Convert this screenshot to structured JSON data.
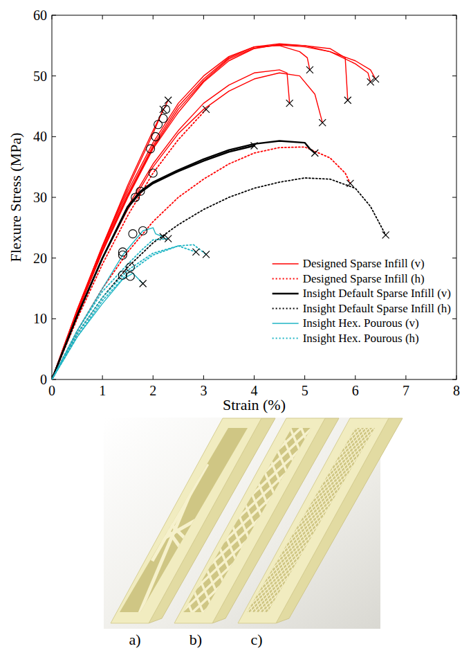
{
  "chart_data": {
    "type": "line",
    "x_label": "Strain (%)",
    "y_label": "Flexure Stress (MPa)",
    "xlim": [
      0,
      8
    ],
    "ylim": [
      0,
      60
    ],
    "xticks": [
      0,
      1,
      2,
      3,
      4,
      5,
      6,
      7,
      8
    ],
    "yticks": [
      0,
      10,
      20,
      30,
      40,
      50,
      60
    ],
    "grid": false,
    "legend": "lower right",
    "marker": "x",
    "series": [
      {
        "name": "Designed Sparse Infill (v)",
        "color": "#ff0000",
        "line_style": "solid",
        "specimens": [
          {
            "x": [
              0,
              0.5,
              1,
              1.5,
              2,
              2.5,
              3,
              3.5,
              4,
              4.5,
              5,
              5.5,
              6,
              6.3,
              6.4
            ],
            "values": [
              0,
              11,
              21,
              30,
              38,
              44,
              49,
              52.5,
              54.5,
              55.2,
              55,
              54,
              52.5,
              51,
              49.5
            ]
          },
          {
            "x": [
              0,
              0.5,
              1,
              1.5,
              2,
              2.5,
              3,
              3.5,
              4,
              4.5,
              5,
              5.5,
              5.8,
              5.85
            ],
            "values": [
              0,
              11,
              21.5,
              30.5,
              38.5,
              45,
              49.5,
              53,
              54.8,
              55.3,
              55,
              54.5,
              53,
              46
            ]
          },
          {
            "x": [
              0,
              0.5,
              1,
              1.5,
              2,
              2.5,
              3,
              3.5,
              4,
              4.5,
              4.9,
              5.05,
              5.1
            ],
            "values": [
              0,
              11.2,
              21.8,
              31,
              39,
              45.5,
              50,
              53.2,
              54.8,
              55,
              54,
              53,
              51
            ]
          },
          {
            "x": [
              0,
              0.5,
              1,
              1.5,
              2,
              2.5,
              3,
              3.5,
              4,
              4.5,
              4.65,
              4.7
            ],
            "values": [
              0,
              10.5,
              20,
              28.5,
              35.5,
              41,
              45.5,
              48.5,
              50.5,
              51,
              50.5,
              45.5
            ]
          },
          {
            "x": [
              0,
              0.5,
              1,
              1.5,
              2,
              2.5,
              3,
              3.5,
              4,
              4.5,
              4.9,
              5.2,
              5.35
            ],
            "values": [
              0,
              10.5,
              20,
              28,
              35,
              40.5,
              44.5,
              47.5,
              49.5,
              50.5,
              50,
              47,
              42.3
            ]
          },
          {
            "x": [
              0,
              0.5,
              1,
              1.5,
              2,
              2.5,
              3,
              3.5,
              4,
              4.5,
              5,
              5.5,
              6,
              6.25,
              6.3
            ],
            "values": [
              0,
              11,
              21.2,
              30.2,
              38.2,
              44.5,
              49.2,
              52.8,
              54.6,
              55.1,
              54.8,
              54,
              52,
              50.5,
              49
            ]
          },
          {
            "x": [
              0,
              0.5,
              1,
              1.5,
              2,
              2.3
            ],
            "values": [
              0,
              11.5,
              22,
              32,
              41,
              46
            ]
          },
          {
            "x": [
              0,
              0.5,
              1,
              1.5,
              2,
              2.2
            ],
            "values": [
              0,
              11.5,
              22,
              31.5,
              40.5,
              44.5
            ]
          }
        ]
      },
      {
        "name": "Designed Sparse Infill (h)",
        "color": "#ff0000",
        "line_style": "dotted",
        "specimens": [
          {
            "x": [
              0,
              0.5,
              1,
              1.5,
              2,
              2.5,
              3,
              3.5,
              4,
              4.5,
              5,
              5.5,
              5.8,
              5.9
            ],
            "values": [
              0,
              8,
              15,
              21,
              26,
              30,
              33,
              35.5,
              37.3,
              38.2,
              38.3,
              36.5,
              34,
              32.3
            ]
          },
          {
            "x": [
              0,
              0.5,
              1,
              1.5,
              2,
              2.5,
              3.05
            ],
            "values": [
              0,
              10,
              19,
              27,
              34,
              39.5,
              44.5
            ]
          }
        ]
      },
      {
        "name": "Insight Default Sparse Infill (v)",
        "color": "#000000",
        "line_style": "solid",
        "specimens": [
          {
            "x": [
              0,
              0.5,
              1,
              1.5,
              1.75,
              2,
              2.5,
              3,
              3.5,
              4,
              4.5,
              5,
              5.1,
              5.2
            ],
            "values": [
              0,
              10.5,
              20,
              28.5,
              31,
              32.5,
              34.5,
              36.3,
              37.8,
              38.8,
              39.3,
              39,
              38,
              37.3
            ]
          },
          {
            "x": [
              0,
              0.5,
              1,
              1.5,
              1.75,
              2,
              2.5,
              3,
              3.5,
              4
            ],
            "values": [
              0,
              10.5,
              20,
              28.3,
              30.8,
              32.3,
              34.3,
              36,
              37.5,
              38.5
            ]
          }
        ]
      },
      {
        "name": "Insight Default Sparse Infill (h)",
        "color": "#000000",
        "line_style": "dotted",
        "specimens": [
          {
            "x": [
              0,
              0.5,
              1,
              1.5,
              2,
              2.5,
              3,
              3.5,
              4,
              4.5,
              5,
              5.5,
              6,
              6.3,
              6.6
            ],
            "values": [
              0,
              7.5,
              13.5,
              18.5,
              22.5,
              25.5,
              28,
              30,
              31.5,
              32.5,
              33.2,
              33,
              31.5,
              28.5,
              23.8
            ]
          }
        ]
      },
      {
        "name": "Insight Hex. Pourous (v)",
        "color": "#1fb5c4",
        "line_style": "solid",
        "specimens": [
          {
            "x": [
              0,
              0.5,
              1,
              1.4,
              1.8,
              2,
              2.05,
              2.2
            ],
            "values": [
              0,
              8,
              15,
              20.5,
              24.5,
              25,
              24,
              23.5
            ]
          },
          {
            "x": [
              0,
              0.5,
              1,
              1.4,
              1.6,
              1.8
            ],
            "values": [
              0,
              7,
              12.5,
              16.5,
              17.5,
              15.8
            ]
          }
        ]
      },
      {
        "name": "Insight Hex. Pourous (h)",
        "color": "#1fb5c4",
        "line_style": "dotted",
        "specimens": [
          {
            "x": [
              0,
              0.5,
              1,
              1.5,
              2,
              2.5,
              2.8,
              3.05
            ],
            "values": [
              0,
              7,
              13,
              17.5,
              20.5,
              22,
              22.2,
              20.6
            ]
          },
          {
            "x": [
              0,
              0.5,
              1,
              1.5,
              2,
              2.5,
              2.85
            ],
            "values": [
              0,
              7.5,
              13.5,
              18,
              20.8,
              22,
              21
            ]
          },
          {
            "x": [
              0,
              0.5,
              1,
              1.5,
              1.8,
              2,
              2.3
            ],
            "values": [
              0,
              8,
              14.5,
              19,
              21.5,
              23,
              23.2
            ]
          }
        ]
      }
    ],
    "circles": {
      "x": [
        1.95,
        2.05,
        2.1,
        2.2,
        2.25,
        2.0,
        1.75,
        1.65,
        1.6,
        1.8,
        1.4,
        1.4,
        1.55,
        1.4,
        1.55
      ],
      "values": [
        38,
        40,
        42,
        43,
        44.5,
        34,
        31,
        30,
        24,
        24.5,
        21,
        20.5,
        18.5,
        17.2,
        17
      ]
    }
  },
  "photo": {
    "labels": [
      "a)",
      "b)",
      "c)"
    ]
  }
}
